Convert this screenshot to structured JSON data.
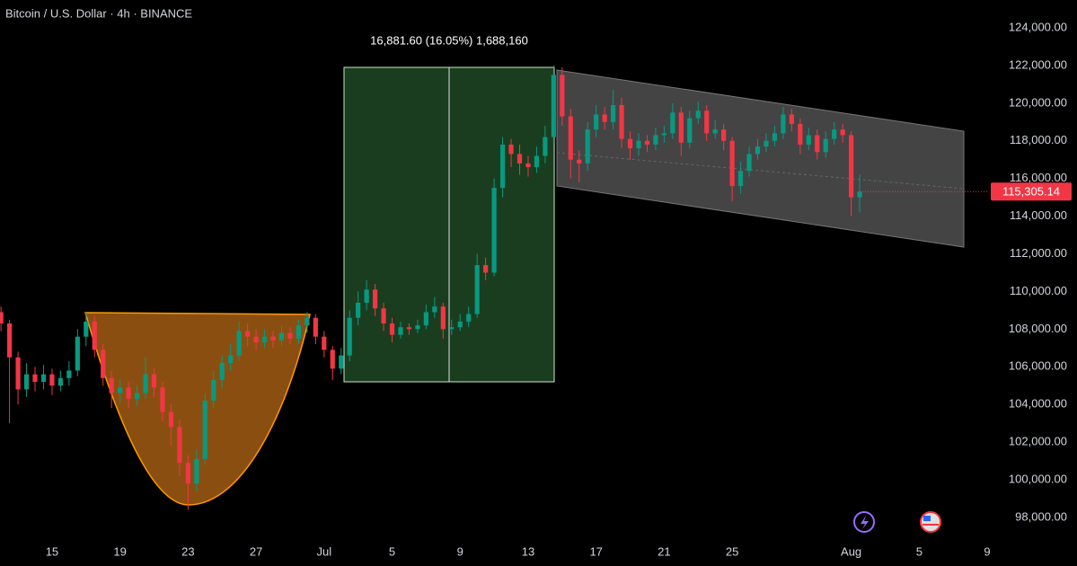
{
  "chart_data": {
    "type": "candlestick",
    "title": "Bitcoin / U.S. Dollar · 4h · BINANCE",
    "annotation": "16,881.60 (16.05%) 1,688,160",
    "last_price_label": "115,305.14",
    "colors": {
      "up": "#089981",
      "down": "#f23645"
    },
    "grid": false,
    "xlim": [
      -3.06,
      55.05
    ],
    "xticks": [
      {
        "value": 0,
        "label": "15"
      },
      {
        "value": 4,
        "label": "19"
      },
      {
        "value": 8,
        "label": "23"
      },
      {
        "value": 12,
        "label": "27"
      },
      {
        "value": 16,
        "label": "Jul"
      },
      {
        "value": 20,
        "label": "5"
      },
      {
        "value": 24,
        "label": "9"
      },
      {
        "value": 28,
        "label": "13"
      },
      {
        "value": 32,
        "label": "17"
      },
      {
        "value": 36,
        "label": "21"
      },
      {
        "value": 40,
        "label": "25"
      },
      {
        "value": 47,
        "label": "Aug"
      },
      {
        "value": 51,
        "label": "5"
      },
      {
        "value": 55,
        "label": "9"
      }
    ],
    "ylim": [
      96850,
      125480
    ],
    "yticks": [
      {
        "value": 98000,
        "label": "98,000.00"
      },
      {
        "value": 100000,
        "label": "100,000.00"
      },
      {
        "value": 102000,
        "label": "102,000.00"
      },
      {
        "value": 104000,
        "label": "104,000.00"
      },
      {
        "value": 106000,
        "label": "106,000.00"
      },
      {
        "value": 108000,
        "label": "108,000.00"
      },
      {
        "value": 110000,
        "label": "110,000.00"
      },
      {
        "value": 112000,
        "label": "112,000.00"
      },
      {
        "value": 114000,
        "label": "114,000.00"
      },
      {
        "value": 116000,
        "label": "116,000.00"
      },
      {
        "value": 118000,
        "label": "118,000.00"
      },
      {
        "value": 120000,
        "label": "120,000.00"
      },
      {
        "value": 122000,
        "label": "122,000.00"
      },
      {
        "value": 124000,
        "label": "124,000.00"
      }
    ],
    "x": [
      -3,
      -2.5,
      -2,
      -1.5,
      -1,
      -0.5,
      0,
      0.5,
      1,
      1.5,
      2,
      2.5,
      3,
      3.5,
      4,
      4.5,
      5,
      5.5,
      6,
      6.5,
      7,
      7.5,
      8,
      8.5,
      9,
      9.5,
      10,
      10.5,
      11,
      11.5,
      12,
      12.5,
      13,
      13.5,
      14,
      14.5,
      15,
      15.5,
      16,
      16.5,
      17,
      17.5,
      18,
      18.5,
      19,
      19.5,
      20,
      20.5,
      21,
      21.5,
      22,
      22.5,
      23,
      23.5,
      24,
      24.5,
      25,
      25.5,
      26,
      26.5,
      27,
      27.5,
      28,
      28.5,
      29,
      29.5,
      30,
      30.5,
      31,
      31.5,
      32,
      32.5,
      33,
      33.5,
      34,
      34.5,
      35,
      35.5,
      36,
      36.5,
      37,
      37.5,
      38,
      38.5,
      39,
      39.5,
      40,
      40.5,
      41,
      41.5,
      42,
      42.5,
      43,
      43.5,
      44,
      44.5,
      45,
      45.5,
      46,
      46.5,
      47,
      47.5
    ],
    "open": [
      108900,
      108300,
      106500,
      104800,
      105600,
      105200,
      105600,
      105000,
      105400,
      105800,
      107600,
      108400,
      106900,
      105400,
      104600,
      104900,
      104300,
      104600,
      105600,
      104900,
      103600,
      102800,
      100900,
      99800,
      101100,
      104200,
      105300,
      106200,
      106600,
      107900,
      107600,
      107300,
      107600,
      107400,
      107800,
      107500,
      108200,
      108600,
      107600,
      106900,
      105900,
      106600,
      108600,
      109400,
      110100,
      109100,
      108300,
      107700,
      108100,
      108000,
      108200,
      108900,
      109200,
      108000,
      108100,
      108400,
      108800,
      111400,
      111000,
      115500,
      117800,
      117300,
      116800,
      116600,
      117200,
      118200,
      121500,
      119300,
      117000,
      116800,
      118600,
      119400,
      119000,
      119900,
      118100,
      117600,
      118000,
      117800,
      118300,
      118400,
      119500,
      117900,
      119200,
      119600,
      118400,
      118600,
      118000,
      115600,
      116400,
      117300,
      117700,
      118000,
      118400,
      119400,
      118900,
      117800,
      118300,
      117400,
      118100,
      118600,
      118300,
      115000
    ],
    "high": [
      109200,
      108500,
      106800,
      106200,
      106000,
      106100,
      105900,
      105800,
      106300,
      108000,
      108900,
      108700,
      107200,
      105800,
      105300,
      105200,
      105000,
      106500,
      105900,
      105200,
      104000,
      103200,
      101300,
      101600,
      104600,
      105800,
      106600,
      107200,
      108400,
      108300,
      108000,
      108000,
      107900,
      108200,
      108100,
      108500,
      108900,
      108800,
      107900,
      107100,
      107000,
      109000,
      110000,
      110600,
      110400,
      109400,
      108600,
      108400,
      108300,
      108500,
      109300,
      109700,
      109400,
      108500,
      108800,
      109200,
      112000,
      111800,
      116000,
      118200,
      118100,
      117800,
      117200,
      117700,
      118800,
      122000,
      121900,
      119700,
      117500,
      119000,
      119900,
      119800,
      120700,
      120300,
      118500,
      118400,
      118300,
      118700,
      118800,
      120000,
      119800,
      119600,
      120100,
      119900,
      119100,
      118900,
      118200,
      116900,
      117700,
      118100,
      118400,
      118800,
      119800,
      119700,
      119200,
      118700,
      118600,
      118500,
      119000,
      118900,
      118500,
      116200
    ],
    "low": [
      107900,
      103000,
      104000,
      104400,
      104700,
      104800,
      104500,
      104700,
      105000,
      105500,
      107100,
      106500,
      105000,
      103800,
      104100,
      103800,
      103900,
      104300,
      104400,
      103100,
      101800,
      100200,
      98400,
      99400,
      100800,
      103800,
      104900,
      105800,
      106300,
      107100,
      106900,
      107000,
      107000,
      107100,
      107200,
      107200,
      107800,
      107200,
      106500,
      105300,
      105600,
      106300,
      108200,
      109000,
      108700,
      107900,
      107300,
      107500,
      107700,
      107800,
      108000,
      108600,
      107500,
      107700,
      107900,
      108100,
      108600,
      110600,
      110800,
      115000,
      116600,
      116200,
      116100,
      116300,
      116800,
      117800,
      118800,
      116000,
      115800,
      116400,
      118200,
      118600,
      118600,
      117600,
      117000,
      117200,
      117400,
      117500,
      117900,
      118100,
      117200,
      117600,
      118900,
      118000,
      118100,
      117500,
      114800,
      115200,
      116100,
      117000,
      117400,
      117700,
      118100,
      118500,
      117300,
      117500,
      117000,
      117100,
      117800,
      117900,
      114000,
      114200
    ],
    "close": [
      108300,
      106500,
      104800,
      105600,
      105200,
      105600,
      105000,
      105400,
      105800,
      107600,
      108400,
      106900,
      105400,
      104600,
      104900,
      104300,
      104600,
      105600,
      104900,
      103600,
      102800,
      100900,
      99800,
      101100,
      104200,
      105300,
      106200,
      106600,
      107900,
      107600,
      107300,
      107600,
      107400,
      107800,
      107500,
      108200,
      108600,
      107600,
      106900,
      105900,
      106600,
      108600,
      109400,
      110100,
      109100,
      108300,
      107700,
      108100,
      108000,
      108200,
      108900,
      109200,
      108000,
      108100,
      108400,
      108800,
      111400,
      111000,
      115500,
      117800,
      117300,
      116800,
      116600,
      117200,
      118200,
      121500,
      119300,
      117000,
      116800,
      118600,
      119400,
      119000,
      119900,
      118100,
      117600,
      118000,
      117800,
      118300,
      118400,
      119500,
      117900,
      119200,
      119600,
      118400,
      118600,
      118000,
      115600,
      116400,
      117300,
      117700,
      118000,
      118400,
      119400,
      118900,
      117800,
      118300,
      117400,
      118100,
      118600,
      118300,
      115000,
      115305.14
    ]
  }
}
